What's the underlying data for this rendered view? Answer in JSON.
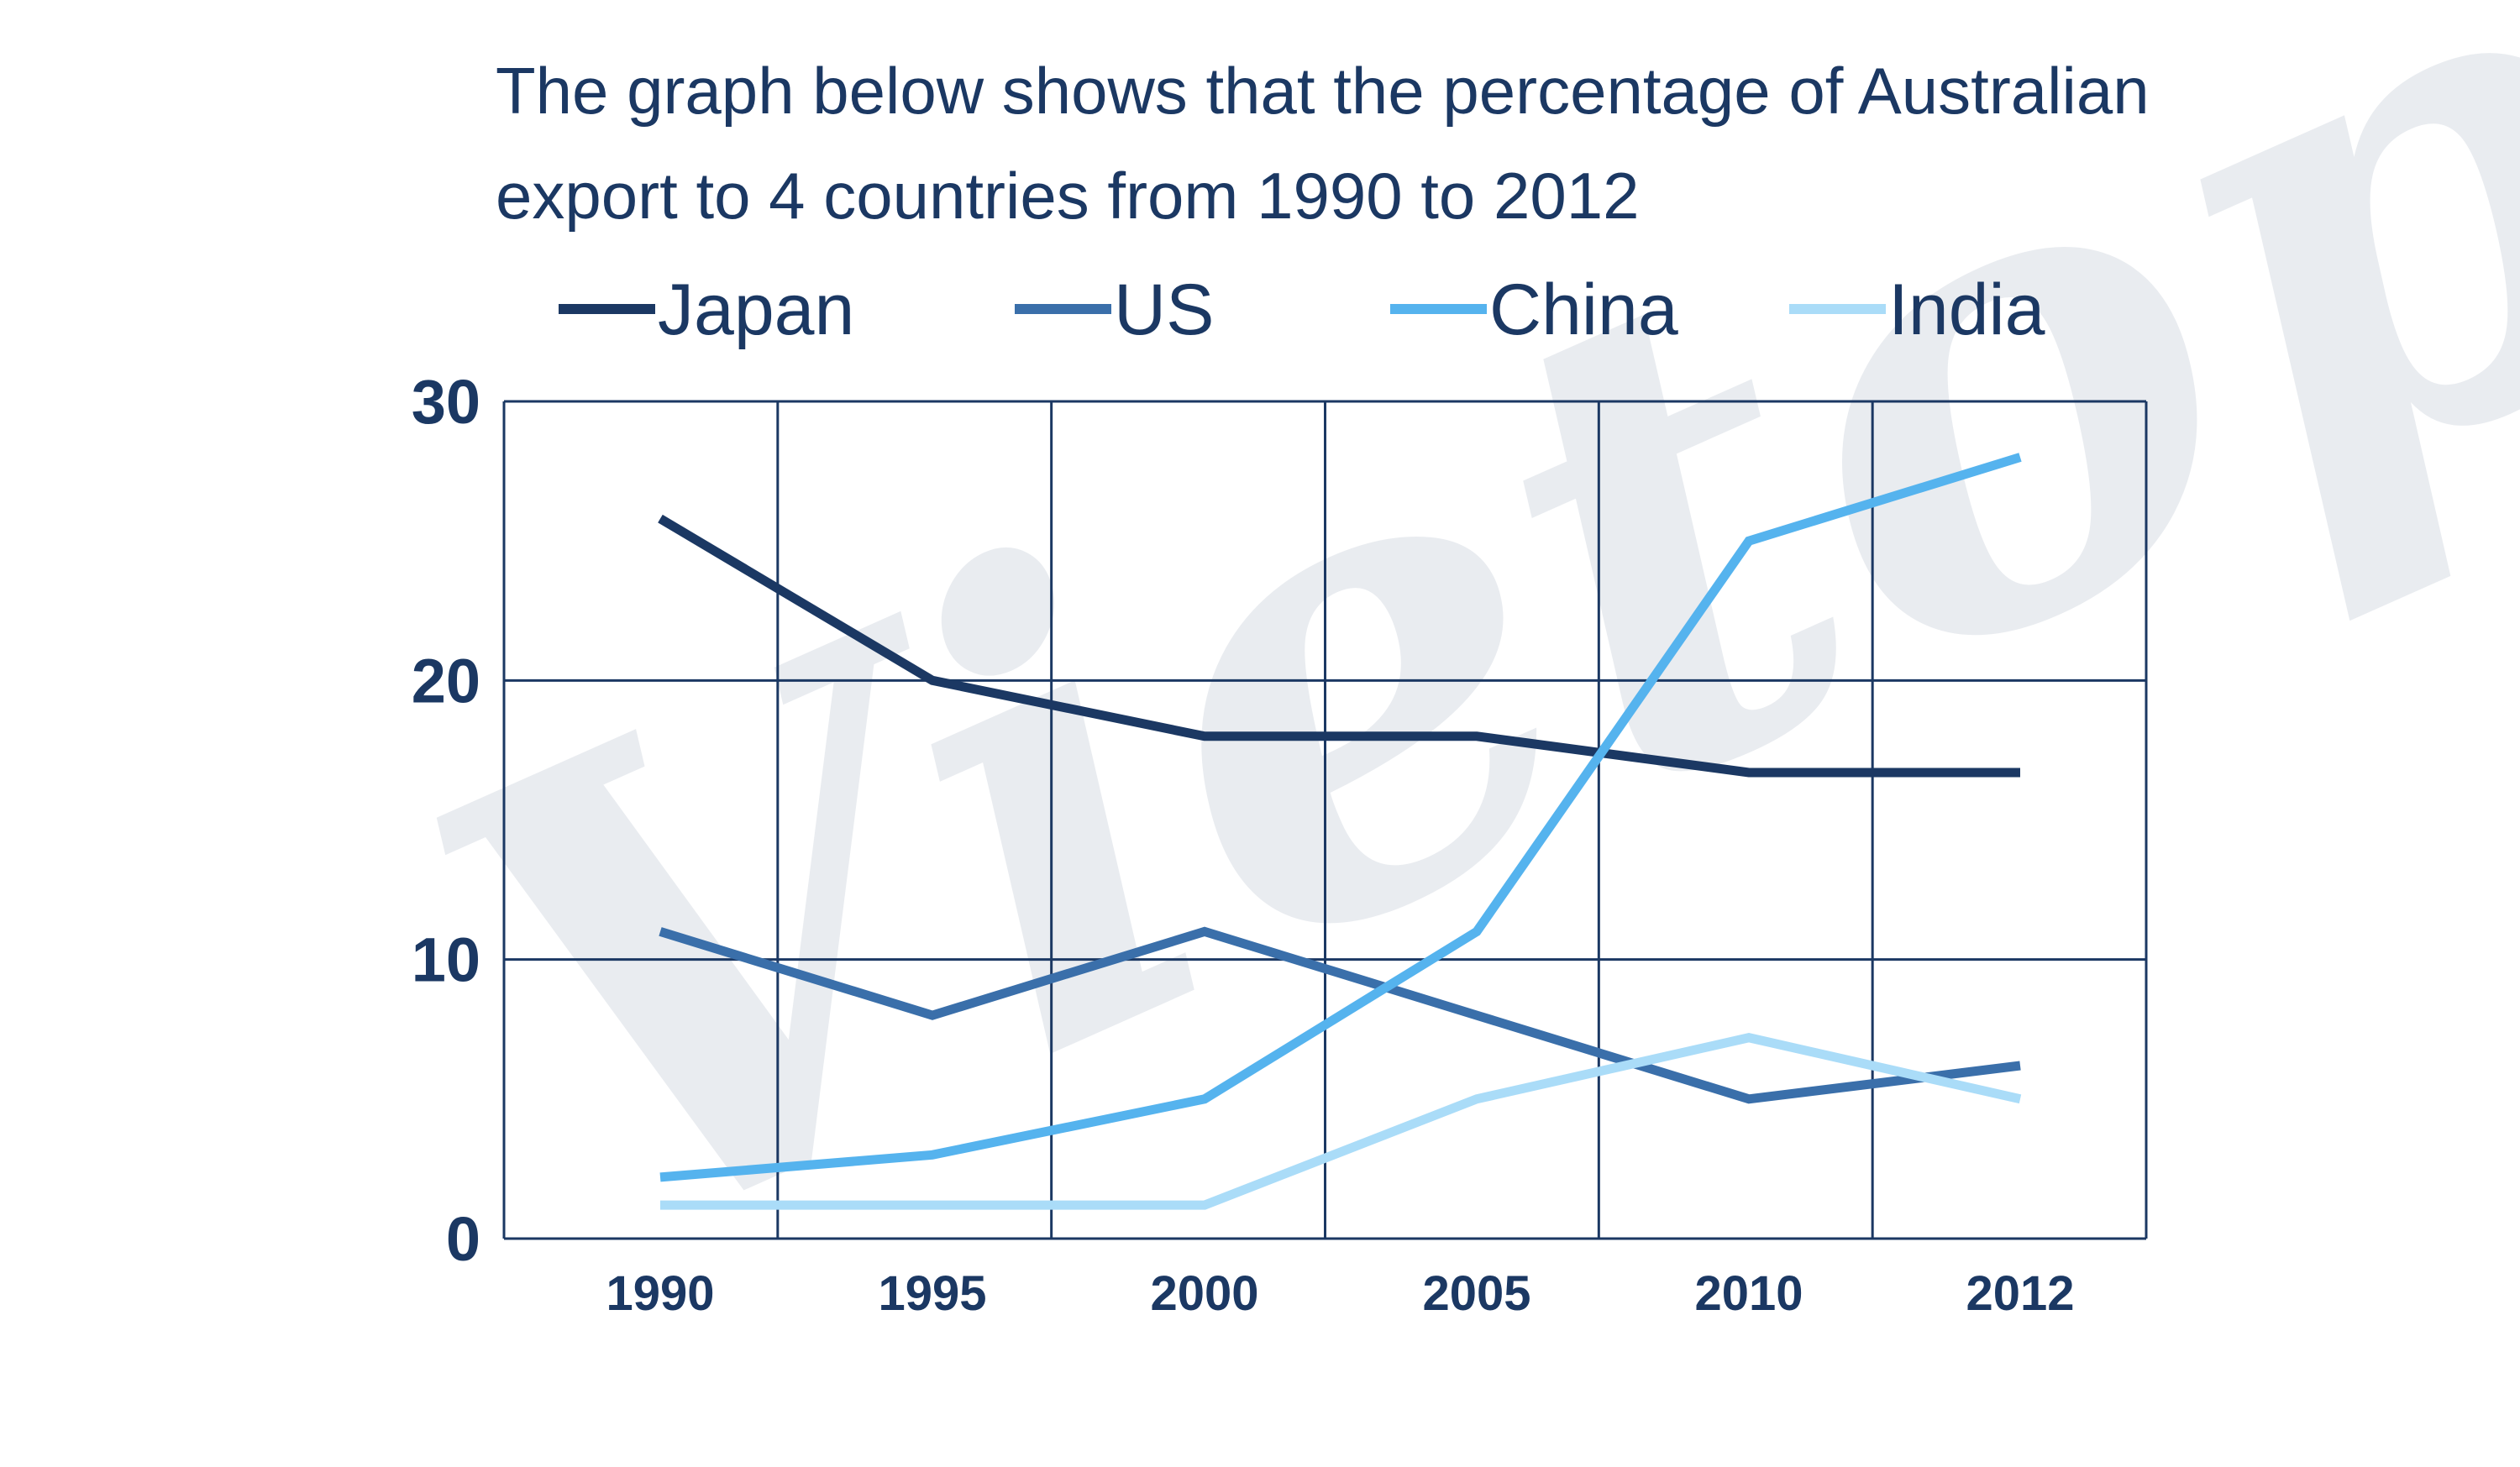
{
  "chart_data": {
    "type": "line",
    "title_lines": [
      "The graph below shows that the percentage of Australian",
      "export to 4 countries from 1990 to 2012"
    ],
    "x": [
      "1990",
      "1995",
      "2000",
      "2005",
      "2010",
      "2012"
    ],
    "yticks": [
      "0",
      "10",
      "20",
      "30"
    ],
    "ylim": [
      0,
      30
    ],
    "grid": true,
    "legend_position": "top",
    "series": [
      {
        "name": "Japan",
        "color": "#1b3863",
        "values": [
          25.8,
          20,
          18,
          18,
          16.7,
          16.7
        ]
      },
      {
        "name": "US",
        "color": "#3a6faa",
        "values": [
          11,
          8,
          11,
          8,
          5,
          6.2
        ]
      },
      {
        "name": "China",
        "color": "#55b3ee",
        "values": [
          2.2,
          3,
          5,
          11,
          25,
          28
        ]
      },
      {
        "name": "India",
        "color": "#aadcf8",
        "values": [
          1.2,
          1.2,
          1.2,
          5,
          7.2,
          5
        ]
      }
    ],
    "watermark": "Vietop"
  }
}
